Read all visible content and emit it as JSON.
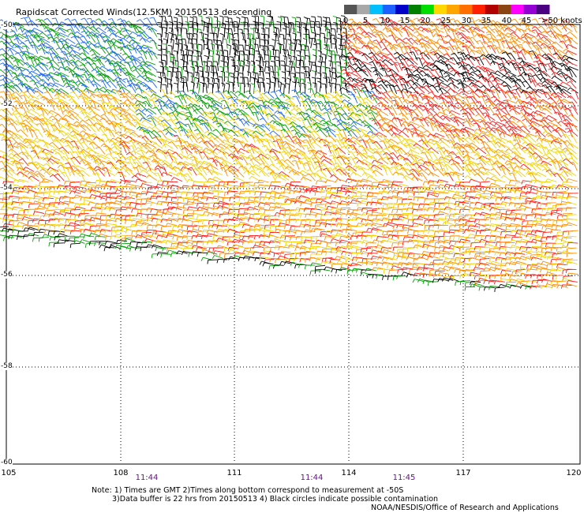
{
  "title": "Rapidscat Corrected Winds(12.5KM) 20150513 descending",
  "colorbar": {
    "labels": [
      "0",
      "5",
      "10",
      "15",
      "20",
      "25",
      "30",
      "35",
      "40",
      "45",
      ">50 knots"
    ],
    "colors": [
      "#555555",
      "#a8a8a8",
      "#00bfff",
      "#1e5fff",
      "#0000c8",
      "#008000",
      "#00dd00",
      "#ffd700",
      "#ffa500",
      "#ff7000",
      "#ff2000",
      "#b00000",
      "#8b4513",
      "#ff00ff",
      "#9400d3",
      "#4b0082"
    ]
  },
  "map": {
    "lat_labels": [
      "-50",
      "-52",
      "-54",
      "-56",
      "-58",
      "-60"
    ],
    "lon_labels": [
      "105",
      "108",
      "111",
      "114",
      "117",
      "120"
    ],
    "time_labels": [
      "11:44",
      "11:44",
      "11:45"
    ]
  },
  "notes": {
    "line1": "Note: 1) Times are GMT 2)Times along bottom correspond to measurement at -50S",
    "line2": "3)Data buffer is 22 hrs from 20150513 4) Black circles indicate possible contamination",
    "credit": "NOAA/NESDIS/Office of Research and Applications"
  },
  "wind_colors": {
    "calm": "#000000",
    "light": "#1a64ff",
    "moderate": "#00a000",
    "fresh": "#f2d400",
    "strong": "#ff8c00",
    "gale": "#ff1a1a"
  }
}
